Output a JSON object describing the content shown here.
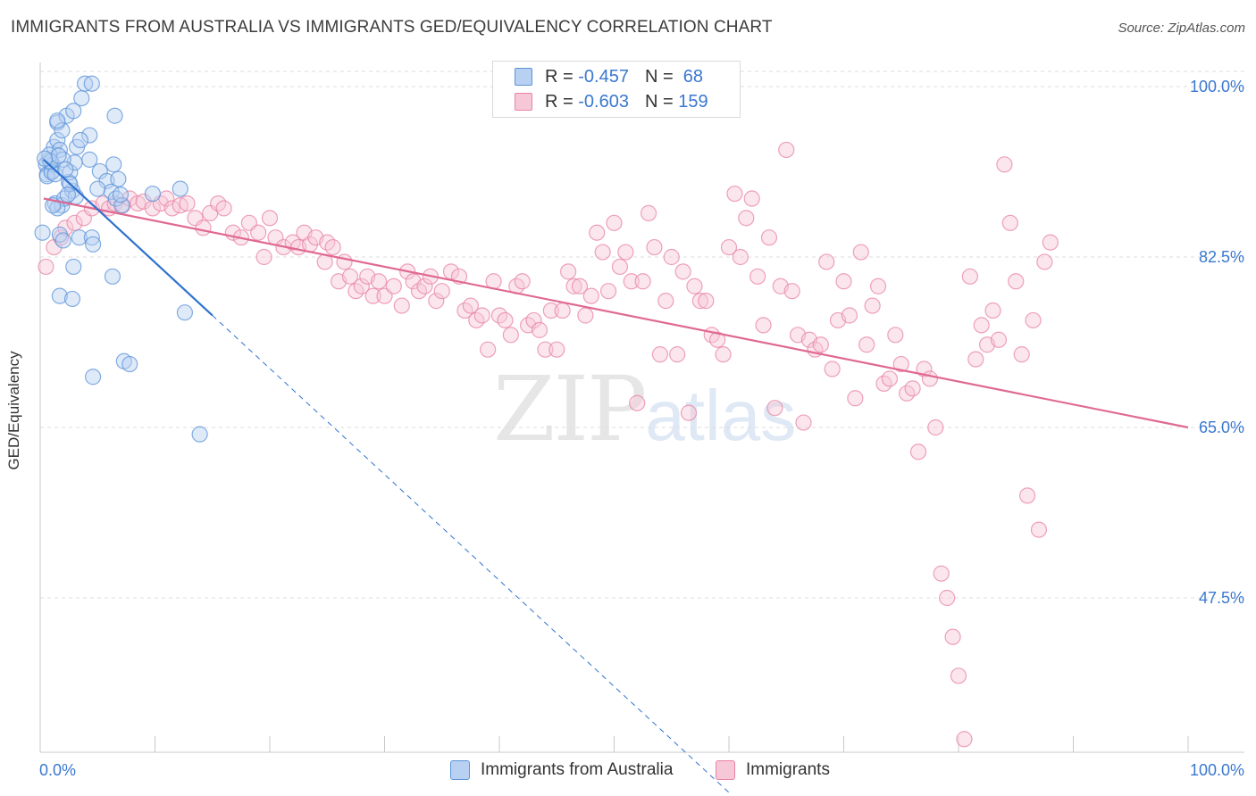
{
  "title": "IMMIGRANTS FROM AUSTRALIA VS IMMIGRANTS GED/EQUIVALENCY CORRELATION CHART",
  "source": "Source: ZipAtlas.com",
  "watermark": {
    "zip": "ZIP",
    "atlas": "atlas"
  },
  "legend": {
    "r_label": "R =",
    "n_label": "N =",
    "series_a": {
      "r": "-0.457",
      "n": "68"
    },
    "series_b": {
      "r": "-0.603",
      "n": "159"
    }
  },
  "bottom_legend": {
    "a": "Immigrants from Australia",
    "b": "Immigrants"
  },
  "colors": {
    "blue": "#5b93d8",
    "blue_fill": "#b8d1f2",
    "blue_line": "#2e72cf",
    "pink": "#e883a6",
    "pink_fill": "#f6c7d6",
    "pink_line": "#e0698f",
    "tick_text": "#3a78d0",
    "grid": "#dedede"
  },
  "chart_data": {
    "type": "scatter",
    "xlabel": "",
    "ylabel": "GED/Equivalency",
    "xlim": [
      0,
      100
    ],
    "ylim": [
      29,
      102
    ],
    "x_tick_labels": [
      "0.0%",
      "100.0%"
    ],
    "y_ticks": [
      47.5,
      65.0,
      82.5,
      100.0
    ],
    "y_tick_labels": [
      "47.5%",
      "65.0%",
      "82.5%",
      "100.0%"
    ],
    "grid": true,
    "series": [
      {
        "name": "Immigrants from Australia",
        "r": -0.457,
        "n": 68,
        "trend": {
          "x0": 0.3,
          "y0": 92.5,
          "x1": 15.0,
          "y1": 76.5,
          "dash_x1": 60.0
        },
        "points": [
          [
            0.5,
            92.0
          ],
          [
            0.6,
            91.0
          ],
          [
            0.8,
            92.5
          ],
          [
            1.0,
            91.3
          ],
          [
            1.2,
            93.8
          ],
          [
            1.5,
            94.5
          ],
          [
            1.5,
            96.3
          ],
          [
            1.7,
            93.5
          ],
          [
            1.9,
            95.5
          ],
          [
            2.3,
            97.0
          ],
          [
            2.9,
            97.5
          ],
          [
            3.6,
            98.8
          ],
          [
            3.9,
            100.3
          ],
          [
            4.5,
            100.3
          ],
          [
            1.3,
            88.0
          ],
          [
            1.9,
            87.8
          ],
          [
            2.1,
            88.5
          ],
          [
            2.8,
            89.3
          ],
          [
            2.5,
            90.2
          ],
          [
            2.6,
            91.2
          ],
          [
            3.2,
            93.8
          ],
          [
            4.3,
            92.5
          ],
          [
            5.2,
            91.3
          ],
          [
            5.8,
            90.3
          ],
          [
            6.2,
            89.2
          ],
          [
            6.8,
            90.5
          ],
          [
            6.6,
            88.5
          ],
          [
            7.1,
            87.8
          ],
          [
            3.1,
            88.7
          ],
          [
            1.7,
            84.8
          ],
          [
            2.0,
            84.2
          ],
          [
            3.4,
            84.5
          ],
          [
            4.5,
            84.5
          ],
          [
            4.6,
            83.8
          ],
          [
            2.9,
            81.5
          ],
          [
            6.3,
            80.5
          ],
          [
            1.7,
            78.5
          ],
          [
            2.8,
            78.2
          ],
          [
            12.6,
            76.8
          ],
          [
            4.6,
            70.2
          ],
          [
            7.3,
            71.8
          ],
          [
            7.8,
            71.5
          ],
          [
            1.5,
            87.5
          ],
          [
            0.6,
            90.8
          ],
          [
            1.1,
            92.0
          ],
          [
            1.0,
            91.2
          ],
          [
            3.0,
            92.2
          ],
          [
            6.4,
            92.0
          ],
          [
            9.8,
            89.0
          ],
          [
            12.2,
            89.5
          ],
          [
            4.3,
            95.0
          ],
          [
            0.2,
            85.0
          ],
          [
            1.3,
            91.0
          ],
          [
            2.0,
            92.5
          ],
          [
            0.8,
            93.0
          ],
          [
            3.5,
            94.5
          ],
          [
            6.5,
            97.0
          ],
          [
            2.6,
            90.0
          ],
          [
            2.2,
            91.5
          ],
          [
            1.1,
            87.8
          ],
          [
            0.9,
            92.3
          ],
          [
            1.6,
            92.9
          ],
          [
            2.4,
            88.9
          ],
          [
            13.9,
            64.3
          ],
          [
            5.0,
            89.5
          ],
          [
            0.4,
            92.6
          ],
          [
            7.0,
            88.9
          ],
          [
            1.5,
            96.5
          ]
        ]
      },
      {
        "name": "Immigrants",
        "r": -0.603,
        "n": 159,
        "trend": {
          "x0": 0.3,
          "y0": 88.5,
          "x1": 100.0,
          "y1": 65.0
        },
        "points": [
          [
            0.5,
            81.5
          ],
          [
            1.2,
            83.5
          ],
          [
            1.8,
            84.5
          ],
          [
            2.2,
            85.5
          ],
          [
            3.0,
            86.0
          ],
          [
            3.8,
            86.5
          ],
          [
            4.5,
            87.5
          ],
          [
            5.5,
            88.0
          ],
          [
            6.0,
            87.5
          ],
          [
            6.5,
            88.0
          ],
          [
            7.2,
            87.8
          ],
          [
            7.8,
            88.5
          ],
          [
            8.5,
            88.0
          ],
          [
            9.0,
            88.2
          ],
          [
            9.8,
            87.5
          ],
          [
            10.5,
            88.0
          ],
          [
            11.0,
            88.5
          ],
          [
            11.5,
            87.5
          ],
          [
            12.2,
            87.8
          ],
          [
            12.8,
            88.0
          ],
          [
            13.5,
            86.5
          ],
          [
            14.2,
            85.5
          ],
          [
            14.8,
            87.0
          ],
          [
            15.5,
            88.0
          ],
          [
            16.0,
            87.5
          ],
          [
            16.8,
            85.0
          ],
          [
            17.5,
            84.5
          ],
          [
            18.2,
            86.0
          ],
          [
            19.0,
            85.0
          ],
          [
            19.5,
            82.5
          ],
          [
            20.0,
            86.5
          ],
          [
            20.5,
            84.5
          ],
          [
            21.2,
            83.5
          ],
          [
            22.0,
            84.0
          ],
          [
            22.5,
            83.5
          ],
          [
            23.0,
            85.0
          ],
          [
            23.5,
            83.8
          ],
          [
            24.0,
            84.5
          ],
          [
            24.8,
            82.0
          ],
          [
            25.0,
            84.0
          ],
          [
            25.5,
            83.5
          ],
          [
            26.0,
            80.0
          ],
          [
            26.5,
            82.0
          ],
          [
            27.0,
            80.5
          ],
          [
            27.5,
            79.0
          ],
          [
            28.0,
            79.5
          ],
          [
            28.5,
            80.5
          ],
          [
            29.0,
            78.5
          ],
          [
            29.5,
            80.0
          ],
          [
            30.0,
            78.5
          ],
          [
            30.8,
            79.5
          ],
          [
            31.5,
            77.5
          ],
          [
            32.0,
            81.0
          ],
          [
            32.5,
            80.0
          ],
          [
            33.0,
            79.0
          ],
          [
            33.5,
            79.5
          ],
          [
            34.0,
            80.5
          ],
          [
            34.5,
            78.0
          ],
          [
            35.0,
            79.0
          ],
          [
            35.8,
            81.0
          ],
          [
            36.5,
            80.5
          ],
          [
            37.0,
            77.0
          ],
          [
            37.5,
            77.5
          ],
          [
            38.0,
            76.0
          ],
          [
            38.5,
            76.5
          ],
          [
            39.0,
            73.0
          ],
          [
            39.5,
            80.0
          ],
          [
            40.0,
            76.5
          ],
          [
            40.5,
            76.0
          ],
          [
            41.0,
            74.5
          ],
          [
            41.5,
            79.5
          ],
          [
            42.0,
            80.0
          ],
          [
            42.5,
            75.5
          ],
          [
            43.0,
            76.0
          ],
          [
            43.5,
            75.0
          ],
          [
            44.0,
            73.0
          ],
          [
            44.5,
            77.0
          ],
          [
            45.0,
            73.0
          ],
          [
            45.5,
            77.0
          ],
          [
            46.0,
            81.0
          ],
          [
            46.5,
            79.5
          ],
          [
            47.0,
            79.5
          ],
          [
            47.5,
            76.5
          ],
          [
            48.0,
            78.5
          ],
          [
            48.5,
            85.0
          ],
          [
            49.0,
            83.0
          ],
          [
            49.5,
            79.0
          ],
          [
            50.0,
            86.0
          ],
          [
            50.5,
            81.5
          ],
          [
            51.0,
            83.0
          ],
          [
            51.5,
            80.0
          ],
          [
            52.0,
            67.5
          ],
          [
            52.5,
            80.0
          ],
          [
            53.0,
            87.0
          ],
          [
            53.5,
            83.5
          ],
          [
            54.0,
            72.5
          ],
          [
            54.5,
            78.0
          ],
          [
            55.0,
            82.5
          ],
          [
            55.5,
            72.5
          ],
          [
            56.0,
            81.0
          ],
          [
            56.5,
            66.5
          ],
          [
            57.0,
            79.5
          ],
          [
            57.5,
            78.0
          ],
          [
            58.0,
            78.0
          ],
          [
            58.5,
            74.5
          ],
          [
            59.0,
            74.0
          ],
          [
            59.5,
            72.5
          ],
          [
            60.0,
            83.5
          ],
          [
            60.5,
            89.0
          ],
          [
            61.0,
            82.5
          ],
          [
            61.5,
            86.5
          ],
          [
            62.0,
            88.5
          ],
          [
            62.5,
            80.5
          ],
          [
            63.0,
            75.5
          ],
          [
            63.5,
            84.5
          ],
          [
            64.0,
            67.0
          ],
          [
            64.5,
            79.5
          ],
          [
            65.0,
            93.5
          ],
          [
            65.5,
            79.0
          ],
          [
            66.0,
            74.5
          ],
          [
            66.5,
            65.5
          ],
          [
            67.0,
            74.0
          ],
          [
            67.5,
            73.0
          ],
          [
            68.0,
            73.5
          ],
          [
            68.5,
            82.0
          ],
          [
            69.0,
            71.0
          ],
          [
            69.5,
            76.0
          ],
          [
            70.0,
            80.0
          ],
          [
            70.5,
            76.5
          ],
          [
            71.0,
            68.0
          ],
          [
            71.5,
            83.0
          ],
          [
            72.0,
            73.5
          ],
          [
            72.5,
            77.5
          ],
          [
            73.0,
            79.5
          ],
          [
            73.5,
            69.5
          ],
          [
            74.0,
            70.0
          ],
          [
            74.5,
            74.5
          ],
          [
            75.0,
            71.5
          ],
          [
            75.5,
            68.5
          ],
          [
            76.0,
            69.0
          ],
          [
            76.5,
            62.5
          ],
          [
            77.0,
            71.0
          ],
          [
            77.5,
            70.0
          ],
          [
            78.0,
            65.0
          ],
          [
            78.5,
            50.0
          ],
          [
            79.0,
            47.5
          ],
          [
            79.5,
            43.5
          ],
          [
            80.0,
            39.5
          ],
          [
            80.5,
            33.0
          ],
          [
            81.0,
            80.5
          ],
          [
            81.5,
            72.0
          ],
          [
            82.0,
            75.5
          ],
          [
            82.5,
            73.5
          ],
          [
            83.0,
            77.0
          ],
          [
            83.5,
            74.0
          ],
          [
            84.0,
            92.0
          ],
          [
            84.5,
            86.0
          ],
          [
            85.0,
            80.0
          ],
          [
            85.5,
            72.5
          ],
          [
            86.0,
            58.0
          ],
          [
            86.5,
            76.0
          ],
          [
            87.0,
            54.5
          ],
          [
            87.5,
            82.0
          ],
          [
            88.0,
            84.0
          ]
        ]
      }
    ]
  }
}
